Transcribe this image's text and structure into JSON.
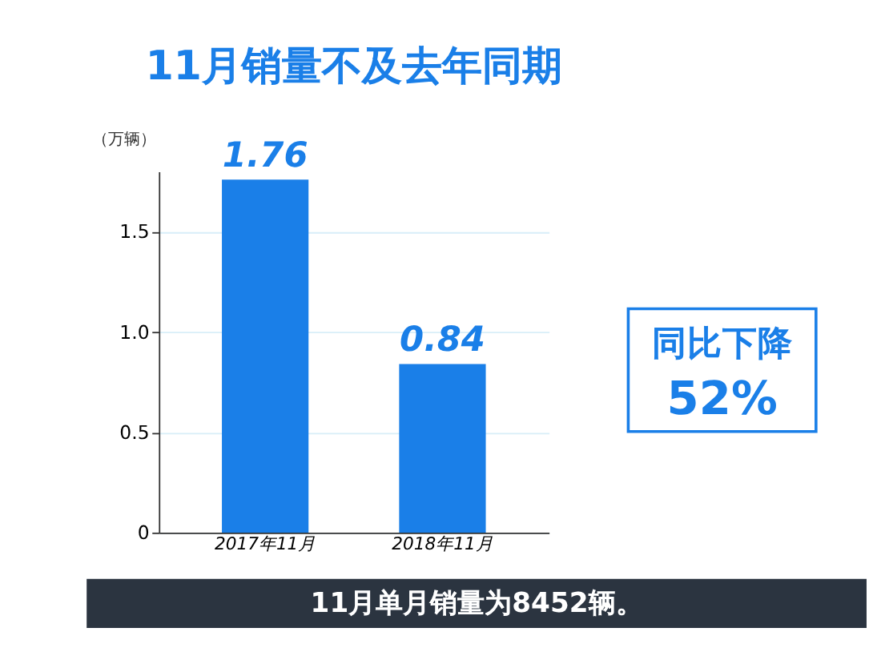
{
  "chart_data": {
    "type": "bar",
    "title": "11月销量不及去年同期",
    "ylabel": "（万辆）",
    "categories": [
      "2017年11月",
      "2018年11月"
    ],
    "values": [
      1.76,
      0.84
    ],
    "color": "#1a7fe8",
    "data_labels": true,
    "ylim": [
      0,
      1.8
    ],
    "yticks": [
      0,
      0.5,
      {
        "value": 1,
        "label": "1.0"
      },
      1.5
    ],
    "grid": "y",
    "annotations": [
      "同比下降",
      "52%",
      "11月单月销量为8452辆。"
    ]
  }
}
